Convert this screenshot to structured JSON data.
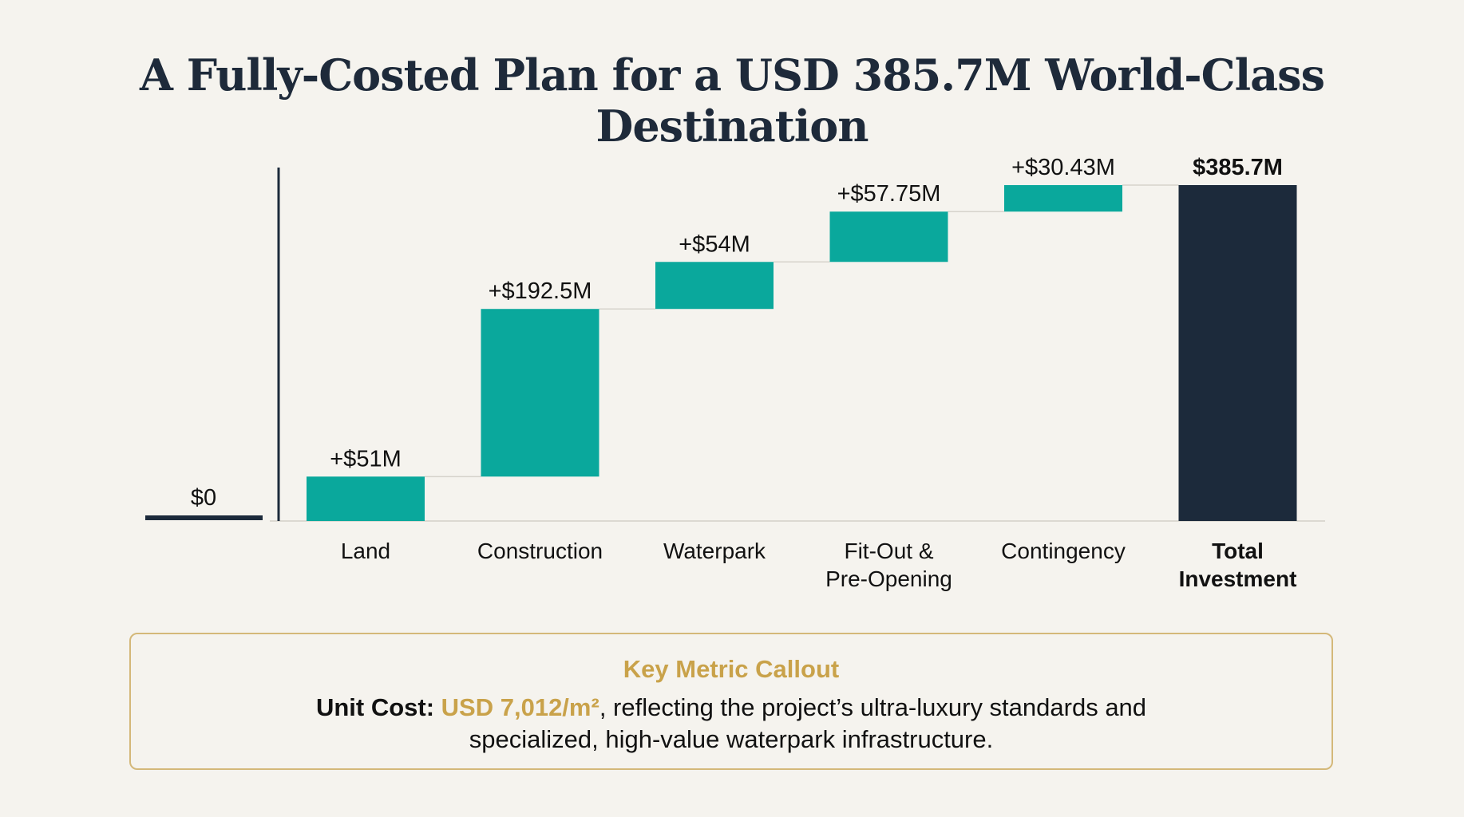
{
  "title": "A Fully-Costed Plan for a USD 385.7M World-Class Destination",
  "colors": {
    "increase": "#0aa89c",
    "total": "#1c2a3b",
    "baseline": "#1c2a3b",
    "accent_gold": "#c9a24a",
    "callout_border": "#d4b879"
  },
  "chart_data": {
    "type": "waterfall",
    "start": {
      "label": "$0",
      "value": 0
    },
    "categories": [
      "Land",
      "Construction",
      "Waterpark",
      "Fit-Out & Pre-Opening",
      "Contingency",
      "Total Investment"
    ],
    "category_lines": [
      [
        "Land"
      ],
      [
        "Construction"
      ],
      [
        "Waterpark"
      ],
      [
        "Fit-Out &",
        "Pre-Opening"
      ],
      [
        "Contingency"
      ],
      [
        "Total",
        "Investment"
      ]
    ],
    "values": [
      51,
      192.5,
      54,
      57.75,
      30.43,
      385.7
    ],
    "kinds": [
      "increase",
      "increase",
      "increase",
      "increase",
      "increase",
      "total"
    ],
    "data_labels": [
      "+$51M",
      "+$192.5M",
      "+$54M",
      "+$57.75M",
      "+$30.43M",
      "$385.7M"
    ],
    "units": "USD M",
    "ylim": [
      0,
      385.7
    ],
    "grid": false,
    "legend": "none"
  },
  "callout": {
    "heading": "Key Metric Callout",
    "label": "Unit Cost:",
    "value": "USD 7,012/m²",
    "text": ", reflecting the project’s ultra-luxury standards and specialized, high-value waterpark infrastructure."
  }
}
